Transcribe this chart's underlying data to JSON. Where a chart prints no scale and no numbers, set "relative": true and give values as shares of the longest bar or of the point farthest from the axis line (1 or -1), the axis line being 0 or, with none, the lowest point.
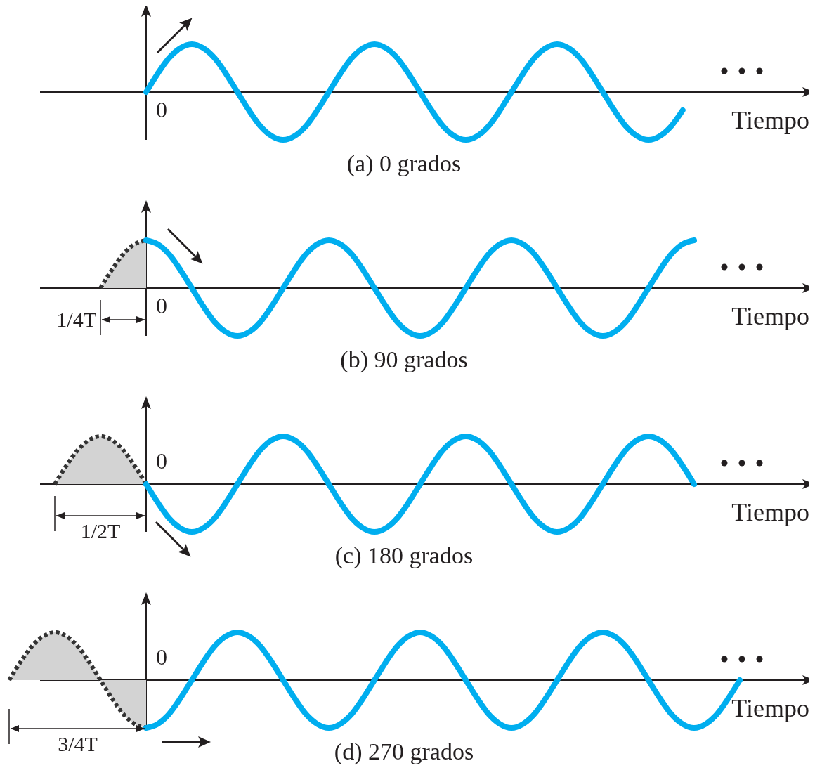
{
  "chart_data": [
    {
      "type": "line",
      "relative": true,
      "title": "(a) 0 grados",
      "xlabel": "Tiempo",
      "annotations": [
        "0"
      ],
      "categories": [
        null,
        null,
        null,
        null,
        null,
        null,
        null,
        null,
        null,
        null,
        null,
        null,
        null,
        null,
        null,
        null,
        null,
        null,
        null,
        null,
        null,
        null,
        null,
        null,
        null,
        null,
        null,
        null,
        null,
        null,
        null,
        null,
        null,
        null,
        null,
        null,
        null,
        null,
        null,
        null,
        null,
        null,
        null,
        null,
        null,
        null,
        null,
        null,
        null,
        null,
        null,
        null,
        null,
        null,
        null,
        null,
        null,
        null,
        null,
        null,
        null,
        null,
        null,
        null,
        null
      ],
      "series": [
        {
          "type": "line",
          "color": "#00aeef",
          "line_style": "solid",
          "values": [
            null,
            null,
            null,
            null,
            null,
            null,
            null,
            null,
            null,
            null,
            null,
            null,
            0,
            0.38,
            0.71,
            0.92,
            1,
            0.92,
            0.71,
            0.38,
            0,
            -0.38,
            -0.71,
            -0.92,
            -1,
            -0.92,
            -0.71,
            -0.38,
            0,
            0.38,
            0.71,
            0.92,
            1,
            0.92,
            0.71,
            0.38,
            0,
            -0.38,
            -0.71,
            -0.92,
            -1,
            -0.92,
            -0.71,
            -0.38,
            0,
            0.38,
            0.71,
            0.92,
            1,
            0.92,
            0.71,
            0.38,
            0,
            -0.38,
            -0.71,
            -0.92,
            -1,
            -0.92,
            -0.71,
            -0.38,
            null,
            null,
            null,
            null,
            null
          ]
        }
      ]
    },
    {
      "type": "line",
      "relative": true,
      "title": "(b) 90 grados",
      "xlabel": "Tiempo",
      "annotations": [
        "0",
        "1/4T"
      ],
      "categories": [
        null,
        null,
        null,
        null,
        null,
        null,
        null,
        null,
        null,
        null,
        null,
        null,
        null,
        null,
        null,
        null,
        null,
        null,
        null,
        null,
        null,
        null,
        null,
        null,
        null,
        null,
        null,
        null,
        null,
        null,
        null,
        null,
        null,
        null,
        null,
        null,
        null,
        null,
        null,
        null,
        null,
        null,
        null,
        null,
        null,
        null,
        null,
        null,
        null,
        null,
        null,
        null,
        null,
        null,
        null,
        null,
        null,
        null,
        null,
        null,
        null,
        null,
        null,
        null,
        null
      ],
      "series": [
        {
          "type": "line",
          "color": "#00aeef",
          "line_style": "solid",
          "values": [
            null,
            null,
            null,
            null,
            null,
            null,
            null,
            null,
            null,
            null,
            null,
            null,
            1,
            0.92,
            0.71,
            0.38,
            0,
            -0.38,
            -0.71,
            -0.92,
            -1,
            -0.92,
            -0.71,
            -0.38,
            0,
            0.38,
            0.71,
            0.92,
            1,
            0.92,
            0.71,
            0.38,
            0,
            -0.38,
            -0.71,
            -0.92,
            -1,
            -0.92,
            -0.71,
            -0.38,
            0,
            0.38,
            0.71,
            0.92,
            1,
            0.92,
            0.71,
            0.38,
            0,
            -0.38,
            -0.71,
            -0.92,
            -1,
            -0.92,
            -0.71,
            -0.38,
            0,
            0.38,
            0.71,
            0.92,
            1,
            null,
            null,
            null,
            null
          ]
        },
        {
          "type": "area",
          "color": "#d3d3d3",
          "line_style": "dotted",
          "values": [
            null,
            null,
            null,
            null,
            null,
            null,
            null,
            null,
            0,
            0.38,
            0.71,
            0.92,
            1,
            null,
            null,
            null,
            null,
            null,
            null,
            null,
            null,
            null,
            null,
            null,
            null,
            null,
            null,
            null,
            null,
            null,
            null,
            null,
            null,
            null,
            null,
            null,
            null,
            null,
            null,
            null,
            null,
            null,
            null,
            null,
            null,
            null,
            null,
            null,
            null,
            null,
            null,
            null,
            null,
            null,
            null,
            null,
            null,
            null,
            null,
            null,
            null,
            null,
            null,
            null,
            null
          ]
        }
      ]
    },
    {
      "type": "line",
      "relative": true,
      "title": "(c) 180 grados",
      "xlabel": "Tiempo",
      "annotations": [
        "0",
        "1/2T"
      ],
      "categories": [
        null,
        null,
        null,
        null,
        null,
        null,
        null,
        null,
        null,
        null,
        null,
        null,
        null,
        null,
        null,
        null,
        null,
        null,
        null,
        null,
        null,
        null,
        null,
        null,
        null,
        null,
        null,
        null,
        null,
        null,
        null,
        null,
        null,
        null,
        null,
        null,
        null,
        null,
        null,
        null,
        null,
        null,
        null,
        null,
        null,
        null,
        null,
        null,
        null,
        null,
        null,
        null,
        null,
        null,
        null,
        null,
        null,
        null,
        null,
        null,
        null,
        null,
        null,
        null,
        null
      ],
      "series": [
        {
          "type": "line",
          "color": "#00aeef",
          "line_style": "solid",
          "values": [
            null,
            null,
            null,
            null,
            null,
            null,
            null,
            null,
            null,
            null,
            null,
            null,
            0,
            -0.38,
            -0.71,
            -0.92,
            -1,
            -0.92,
            -0.71,
            -0.38,
            0,
            0.38,
            0.71,
            0.92,
            1,
            0.92,
            0.71,
            0.38,
            0,
            -0.38,
            -0.71,
            -0.92,
            -1,
            -0.92,
            -0.71,
            -0.38,
            0,
            0.38,
            0.71,
            0.92,
            1,
            0.92,
            0.71,
            0.38,
            0,
            -0.38,
            -0.71,
            -0.92,
            -1,
            -0.92,
            -0.71,
            -0.38,
            0,
            0.38,
            0.71,
            0.92,
            1,
            0.92,
            0.71,
            0.38,
            0,
            null,
            null,
            null,
            null
          ]
        },
        {
          "type": "area",
          "color": "#d3d3d3",
          "line_style": "dotted",
          "values": [
            null,
            null,
            null,
            null,
            0,
            0.38,
            0.71,
            0.92,
            1,
            0.92,
            0.71,
            0.38,
            0,
            null,
            null,
            null,
            null,
            null,
            null,
            null,
            null,
            null,
            null,
            null,
            null,
            null,
            null,
            null,
            null,
            null,
            null,
            null,
            null,
            null,
            null,
            null,
            null,
            null,
            null,
            null,
            null,
            null,
            null,
            null,
            null,
            null,
            null,
            null,
            null,
            null,
            null,
            null,
            null,
            null,
            null,
            null,
            null,
            null,
            null,
            null,
            null,
            null,
            null,
            null,
            null
          ]
        }
      ]
    },
    {
      "type": "line",
      "relative": true,
      "title": "(d) 270 grados",
      "xlabel": "Tiempo",
      "annotations": [
        "0",
        "3/4T"
      ],
      "categories": [
        null,
        null,
        null,
        null,
        null,
        null,
        null,
        null,
        null,
        null,
        null,
        null,
        null,
        null,
        null,
        null,
        null,
        null,
        null,
        null,
        null,
        null,
        null,
        null,
        null,
        null,
        null,
        null,
        null,
        null,
        null,
        null,
        null,
        null,
        null,
        null,
        null,
        null,
        null,
        null,
        null,
        null,
        null,
        null,
        null,
        null,
        null,
        null,
        null,
        null,
        null,
        null,
        null,
        null,
        null,
        null,
        null,
        null,
        null,
        null,
        null,
        null,
        null,
        null,
        null
      ],
      "series": [
        {
          "type": "line",
          "color": "#00aeef",
          "line_style": "solid",
          "values": [
            null,
            null,
            null,
            null,
            null,
            null,
            null,
            null,
            null,
            null,
            null,
            null,
            -1,
            -0.92,
            -0.71,
            -0.38,
            0,
            0.38,
            0.71,
            0.92,
            1,
            0.92,
            0.71,
            0.38,
            0,
            -0.38,
            -0.71,
            -0.92,
            -1,
            -0.92,
            -0.71,
            -0.38,
            0,
            0.38,
            0.71,
            0.92,
            1,
            0.92,
            0.71,
            0.38,
            0,
            -0.38,
            -0.71,
            -0.92,
            -1,
            -0.92,
            -0.71,
            -0.38,
            0,
            0.38,
            0.71,
            0.92,
            1,
            0.92,
            0.71,
            0.38,
            0,
            -0.38,
            -0.71,
            -0.92,
            -1,
            -0.92,
            -0.71,
            -0.38,
            0
          ]
        },
        {
          "type": "area",
          "color": "#d3d3d3",
          "line_style": "dotted",
          "values": [
            0,
            0.38,
            0.71,
            0.92,
            1,
            0.92,
            0.71,
            0.38,
            0,
            -0.38,
            -0.71,
            -0.92,
            -1,
            null,
            null,
            null,
            null,
            null,
            null,
            null,
            null,
            null,
            null,
            null,
            null,
            null,
            null,
            null,
            null,
            null,
            null,
            null,
            null,
            null,
            null,
            null,
            null,
            null,
            null,
            null,
            null,
            null,
            null,
            null,
            null,
            null,
            null,
            null,
            null,
            null,
            null,
            null,
            null,
            null,
            null,
            null,
            null,
            null,
            null,
            null,
            null,
            null,
            null,
            null,
            null
          ]
        }
      ]
    }
  ]
}
